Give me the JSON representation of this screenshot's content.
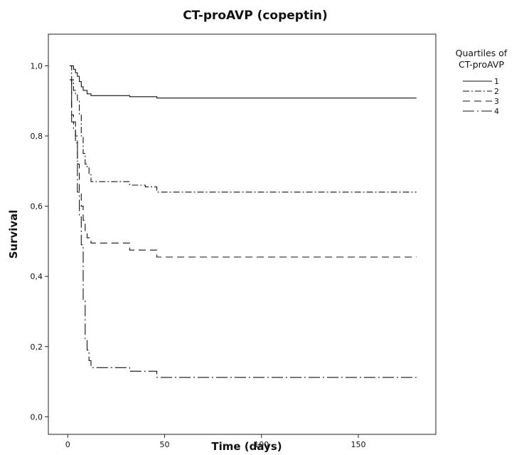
{
  "chart_data": {
    "type": "line",
    "title": "CT-proAVP (copeptin)",
    "xlabel": "Time (days)",
    "ylabel": "Survival",
    "xlim": [
      -10,
      190
    ],
    "ylim": [
      -0.05,
      1.09
    ],
    "x_ticks": [
      0,
      50,
      100,
      150
    ],
    "x_tick_labels": [
      "0",
      "50",
      "100",
      "150"
    ],
    "y_ticks": [
      0.0,
      0.2,
      0.4,
      0.6,
      0.8,
      1.0
    ],
    "y_tick_labels": [
      "0,0",
      "0,2",
      "0,4",
      "0,6",
      "0,8",
      "1,0"
    ],
    "grid": false,
    "legend": {
      "title_lines": [
        "Quartiles of",
        "CT-proAVP"
      ],
      "placement": "right-outside-top",
      "entries": [
        "1",
        "2",
        "3",
        "4"
      ]
    },
    "series": [
      {
        "name": "1",
        "line_style": "solid",
        "color": "#111111",
        "steps": [
          [
            1,
            1.0
          ],
          [
            3,
            0.99
          ],
          [
            4,
            0.98
          ],
          [
            5,
            0.97
          ],
          [
            6,
            0.955
          ],
          [
            7,
            0.94
          ],
          [
            8,
            0.93
          ],
          [
            10,
            0.92
          ],
          [
            12,
            0.915
          ],
          [
            32,
            0.912
          ],
          [
            46,
            0.908
          ],
          [
            180,
            0.908
          ]
        ]
      },
      {
        "name": "2",
        "line_style": "dash-dot",
        "color": "#111111",
        "steps": [
          [
            1,
            1.0
          ],
          [
            2,
            0.96
          ],
          [
            3,
            0.93
          ],
          [
            4,
            0.92
          ],
          [
            5,
            0.9
          ],
          [
            6,
            0.86
          ],
          [
            7,
            0.8
          ],
          [
            8,
            0.75
          ],
          [
            9,
            0.72
          ],
          [
            10,
            0.71
          ],
          [
            11,
            0.69
          ],
          [
            12,
            0.67
          ],
          [
            32,
            0.66
          ],
          [
            40,
            0.655
          ],
          [
            46,
            0.64
          ],
          [
            180,
            0.64
          ]
        ]
      },
      {
        "name": "3",
        "line_style": "dashed",
        "color": "#111111",
        "steps": [
          [
            1,
            0.96
          ],
          [
            2,
            0.86
          ],
          [
            3,
            0.84
          ],
          [
            4,
            0.8
          ],
          [
            5,
            0.72
          ],
          [
            6,
            0.64
          ],
          [
            7,
            0.6
          ],
          [
            8,
            0.56
          ],
          [
            9,
            0.53
          ],
          [
            10,
            0.51
          ],
          [
            12,
            0.495
          ],
          [
            32,
            0.475
          ],
          [
            46,
            0.455
          ],
          [
            180,
            0.455
          ]
        ]
      },
      {
        "name": "4",
        "line_style": "long-dash-dot",
        "color": "#111111",
        "steps": [
          [
            1,
            0.96
          ],
          [
            2,
            0.84
          ],
          [
            3,
            0.82
          ],
          [
            4,
            0.78
          ],
          [
            5,
            0.64
          ],
          [
            6,
            0.57
          ],
          [
            7,
            0.49
          ],
          [
            8,
            0.33
          ],
          [
            9,
            0.22
          ],
          [
            10,
            0.19
          ],
          [
            11,
            0.16
          ],
          [
            12,
            0.14
          ],
          [
            32,
            0.13
          ],
          [
            46,
            0.112
          ],
          [
            180,
            0.112
          ]
        ]
      }
    ]
  }
}
